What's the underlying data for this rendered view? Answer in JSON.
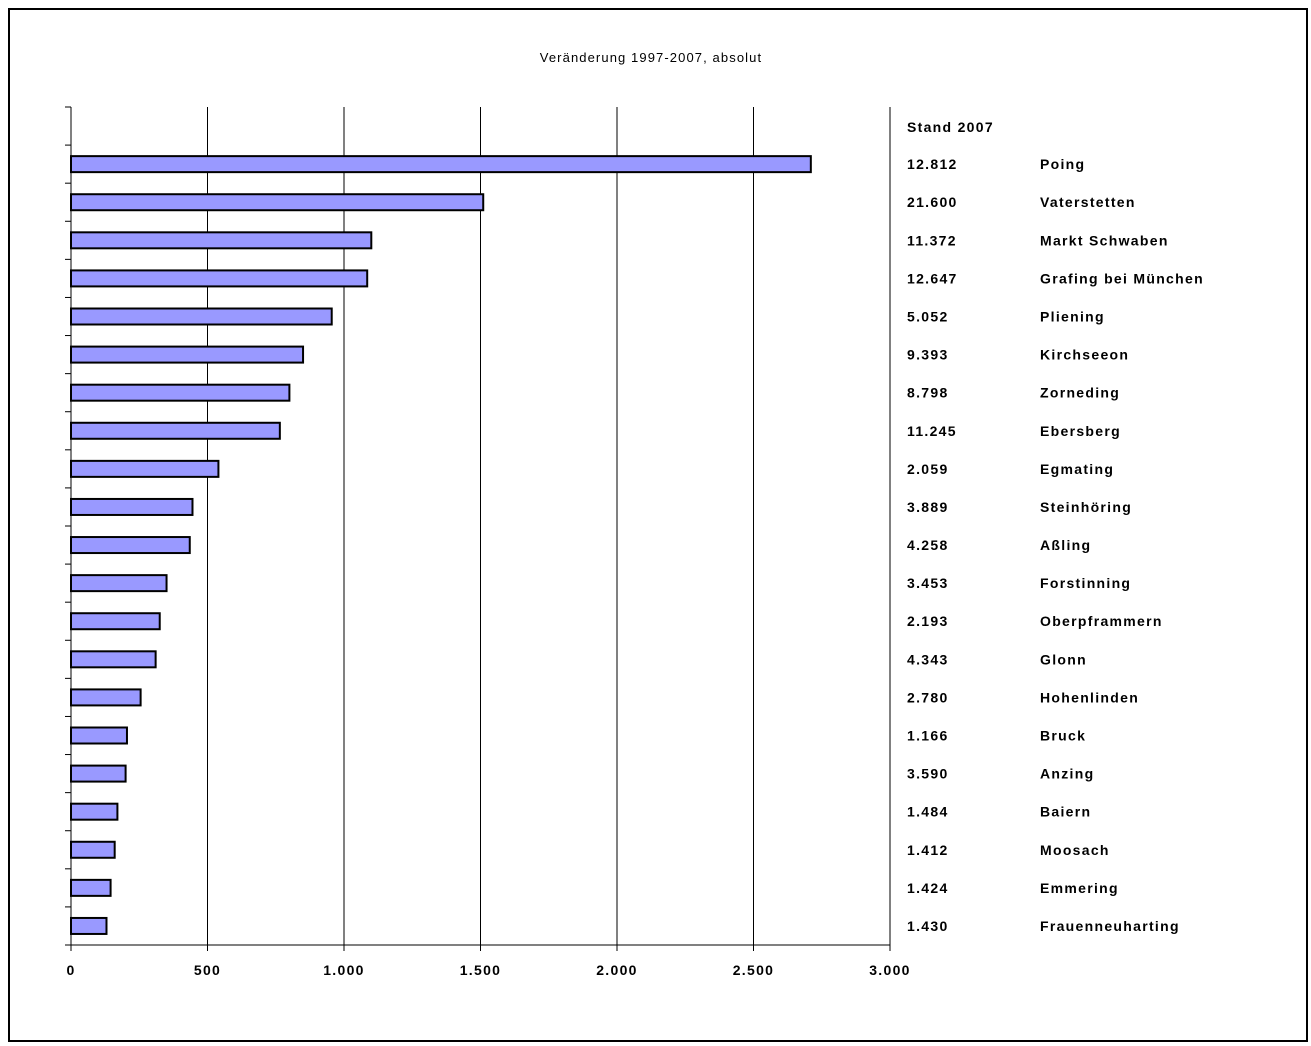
{
  "chart_data": {
    "type": "bar",
    "orientation": "horizontal",
    "title": "Veränderung 1997-2007, absolut",
    "xlim": [
      0,
      3000
    ],
    "x_ticks": [
      0,
      500,
      1000,
      1500,
      2000,
      2500,
      3000
    ],
    "x_tick_labels": [
      "0",
      "500",
      "1.000",
      "1.500",
      "2.000",
      "2.500",
      "3.000"
    ],
    "grid": "vertical",
    "table_header": "Stand 2007",
    "bar_color": "#9999ff",
    "bar_edge_color": "#000000",
    "categories": [
      "Poing",
      "Vaterstetten",
      "Markt Schwaben",
      "Grafing bei München",
      "Pliening",
      "Kirchseeon",
      "Zorneding",
      "Ebersberg",
      "Egmating",
      "Steinhöring",
      "Aßling",
      "Forstinning",
      "Oberpframmern",
      "Glonn",
      "Hohenlinden",
      "Bruck",
      "Anzing",
      "Baiern",
      "Moosach",
      "Emmering",
      "Frauenneuharting"
    ],
    "stand_2007": [
      "12.812",
      "21.600",
      "11.372",
      "12.647",
      "5.052",
      "9.393",
      "8.798",
      "11.245",
      "2.059",
      "3.889",
      "4.258",
      "3.453",
      "2.193",
      "4.343",
      "2.780",
      "1.166",
      "3.590",
      "1.484",
      "1.412",
      "1.424",
      "1.430"
    ],
    "values": [
      2710,
      1510,
      1100,
      1085,
      955,
      850,
      800,
      765,
      540,
      445,
      435,
      350,
      325,
      310,
      255,
      205,
      200,
      170,
      160,
      145,
      130
    ]
  }
}
